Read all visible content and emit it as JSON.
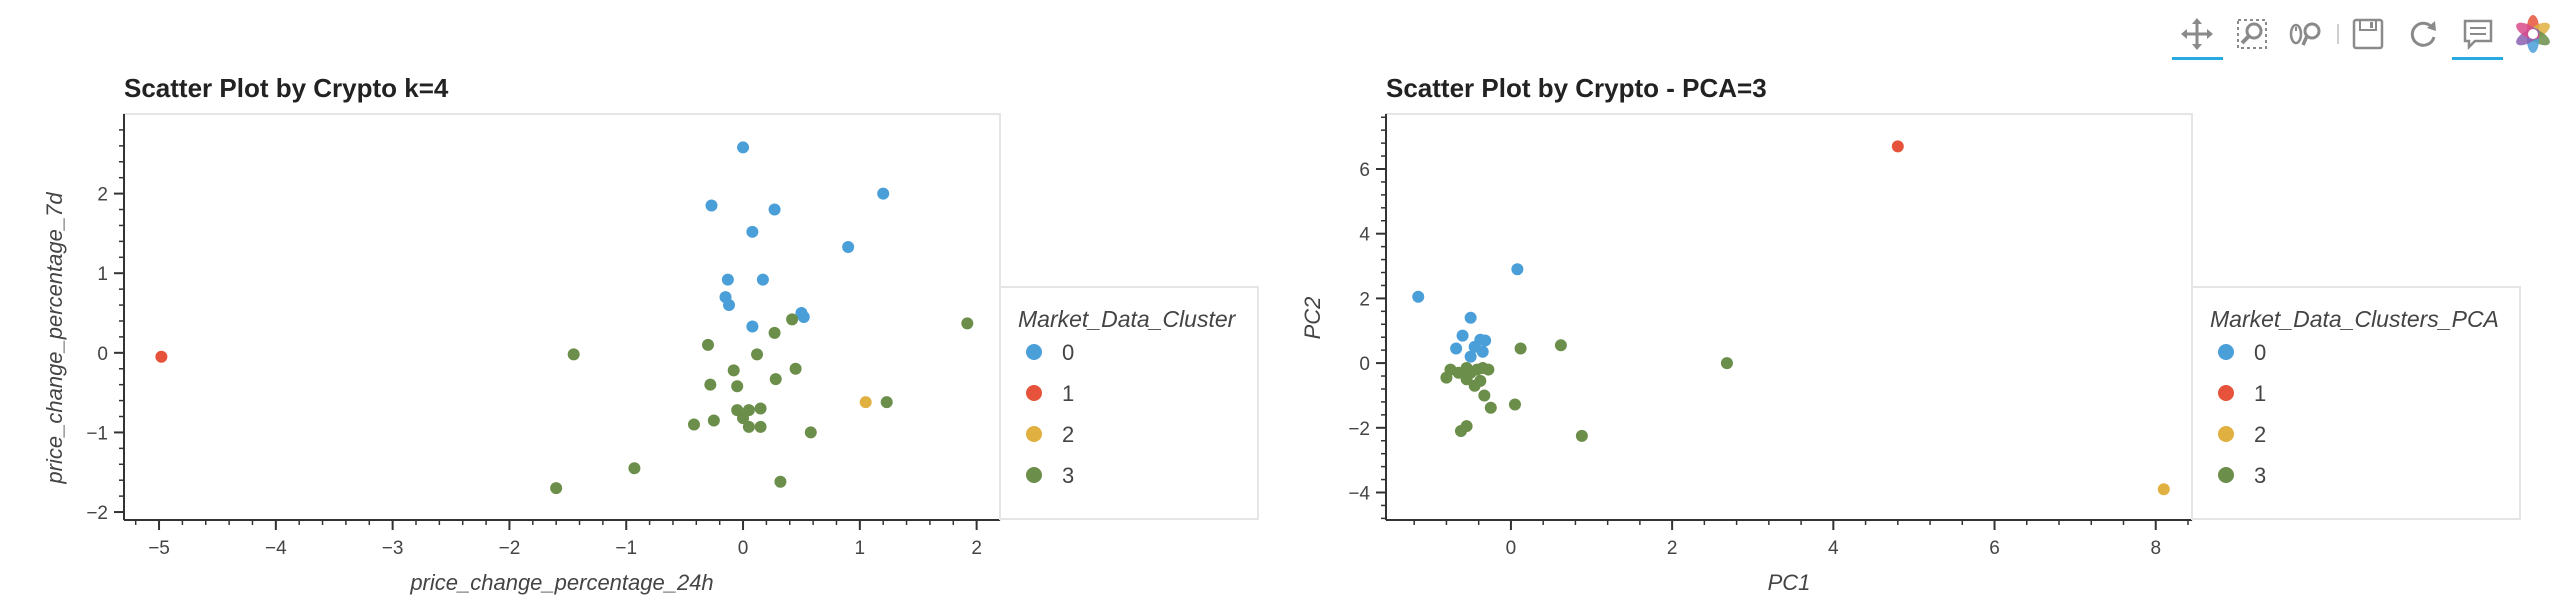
{
  "toolbar": {
    "tools": [
      {
        "name": "pan-tool-icon",
        "active": true
      },
      {
        "name": "box-zoom-tool-icon",
        "active": false
      },
      {
        "name": "wheel-zoom-tool-icon",
        "active": false
      },
      {
        "name": "save-tool-icon",
        "active": false
      },
      {
        "name": "reset-tool-icon",
        "active": false
      },
      {
        "name": "hover-tool-icon",
        "active": true
      },
      {
        "name": "bokeh-logo-icon",
        "active": false
      }
    ]
  },
  "colors": {
    "cluster_0": "#4a9fd8",
    "cluster_1": "#e6533a",
    "cluster_2": "#e0b040",
    "cluster_3": "#6b8e4a",
    "frame": "#e5e5e5",
    "axis": "#333333"
  },
  "chart_data": [
    {
      "type": "scatter",
      "title": "Scatter Plot by Crypto k=4",
      "xlabel": "price_change_percentage_24h",
      "ylabel": "price_change_percentage_7d",
      "xlim": [
        -5.3,
        2.2
      ],
      "ylim": [
        -2.1,
        3.0
      ],
      "xticks": [
        -5,
        -4,
        -3,
        -2,
        -1,
        0,
        1,
        2
      ],
      "yticks": [
        -2,
        -1,
        0,
        1,
        2
      ],
      "legend_title": "Market_Data_Cluster",
      "legend": [
        "0",
        "1",
        "2",
        "3"
      ],
      "series": [
        {
          "name": "0",
          "points": [
            [
              0.0,
              2.58
            ],
            [
              1.2,
              2.0
            ],
            [
              -0.27,
              1.85
            ],
            [
              0.27,
              1.8
            ],
            [
              0.08,
              1.52
            ],
            [
              0.9,
              1.33
            ],
            [
              -0.13,
              0.92
            ],
            [
              0.17,
              0.92
            ],
            [
              -0.15,
              0.7
            ],
            [
              -0.12,
              0.6
            ],
            [
              0.08,
              0.33
            ],
            [
              0.5,
              0.5
            ],
            [
              0.52,
              0.45
            ]
          ]
        },
        {
          "name": "1",
          "points": [
            [
              -4.98,
              -0.05
            ]
          ]
        },
        {
          "name": "2",
          "points": [
            [
              1.05,
              -0.62
            ]
          ]
        },
        {
          "name": "3",
          "points": [
            [
              1.92,
              0.37
            ],
            [
              -1.45,
              -0.02
            ],
            [
              -0.3,
              0.1
            ],
            [
              0.12,
              -0.02
            ],
            [
              0.42,
              0.42
            ],
            [
              0.27,
              0.25
            ],
            [
              -0.08,
              -0.22
            ],
            [
              0.45,
              -0.2
            ],
            [
              0.28,
              -0.33
            ],
            [
              -0.28,
              -0.4
            ],
            [
              -0.05,
              -0.42
            ],
            [
              -0.05,
              -0.72
            ],
            [
              0.05,
              -0.72
            ],
            [
              0.15,
              -0.7
            ],
            [
              -0.25,
              -0.85
            ],
            [
              0.0,
              -0.82
            ],
            [
              -0.42,
              -0.9
            ],
            [
              0.05,
              -0.93
            ],
            [
              0.15,
              -0.93
            ],
            [
              0.58,
              -1.0
            ],
            [
              1.23,
              -0.62
            ],
            [
              -0.93,
              -1.45
            ],
            [
              -1.6,
              -1.7
            ],
            [
              0.32,
              -1.62
            ]
          ]
        }
      ]
    },
    {
      "type": "scatter",
      "title": "Scatter Plot by Crypto - PCA=3",
      "xlabel": "PC1",
      "ylabel": "PC2",
      "xlim": [
        -1.55,
        8.45
      ],
      "ylim": [
        -4.85,
        7.7
      ],
      "xticks": [
        0,
        2,
        4,
        6,
        8
      ],
      "yticks": [
        -4,
        -2,
        0,
        2,
        4,
        6
      ],
      "legend_title": "Market_Data_Clusters_PCA",
      "legend": [
        "0",
        "1",
        "2",
        "3"
      ],
      "series": [
        {
          "name": "0",
          "points": [
            [
              -1.15,
              2.05
            ],
            [
              0.08,
              2.9
            ],
            [
              -0.5,
              1.4
            ],
            [
              -0.6,
              0.85
            ],
            [
              -0.38,
              0.72
            ],
            [
              -0.32,
              0.7
            ],
            [
              -0.68,
              0.45
            ],
            [
              -0.45,
              0.5
            ],
            [
              -0.35,
              0.35
            ],
            [
              -0.5,
              0.2
            ]
          ]
        },
        {
          "name": "1",
          "points": [
            [
              4.8,
              6.7
            ]
          ]
        },
        {
          "name": "2",
          "points": [
            [
              8.1,
              -3.9
            ]
          ]
        },
        {
          "name": "3",
          "points": [
            [
              0.62,
              0.55
            ],
            [
              0.12,
              0.45
            ],
            [
              2.68,
              0.0
            ],
            [
              -0.75,
              -0.2
            ],
            [
              -0.8,
              -0.45
            ],
            [
              -0.65,
              -0.3
            ],
            [
              -0.55,
              -0.15
            ],
            [
              -0.5,
              -0.3
            ],
            [
              -0.42,
              -0.2
            ],
            [
              -0.35,
              -0.15
            ],
            [
              -0.28,
              -0.2
            ],
            [
              -0.55,
              -0.5
            ],
            [
              -0.45,
              -0.7
            ],
            [
              -0.38,
              -0.55
            ],
            [
              -0.33,
              -1.0
            ],
            [
              -0.25,
              -1.38
            ],
            [
              0.05,
              -1.28
            ],
            [
              -0.55,
              -1.95
            ],
            [
              -0.62,
              -2.1
            ],
            [
              0.88,
              -2.25
            ]
          ]
        }
      ]
    }
  ]
}
